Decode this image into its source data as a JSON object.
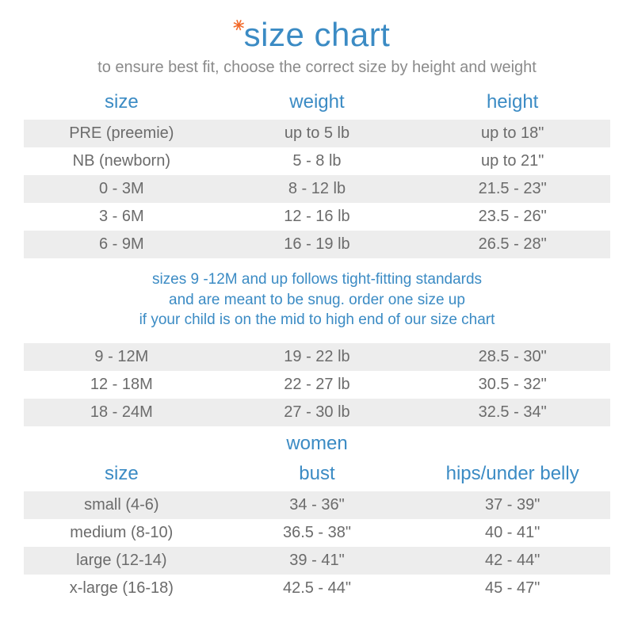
{
  "colors": {
    "blue": "#3b8bc4",
    "orange": "#f26a2a",
    "text": "#6b6b6b",
    "subtext": "#8a8a8a",
    "row_alt": "#ededed",
    "background": "#ffffff"
  },
  "title": "size chart",
  "subtitle": "to ensure best fit, choose the correct size by height and weight",
  "baby_headers": {
    "size": "size",
    "weight": "weight",
    "height": "height"
  },
  "baby_rows_a": [
    {
      "size": "PRE (preemie)",
      "weight": "up to 5 lb",
      "height": "up to 18\""
    },
    {
      "size": "NB (newborn)",
      "weight": "5 - 8 lb",
      "height": "up to 21\""
    },
    {
      "size": "0 - 3M",
      "weight": "8 - 12 lb",
      "height": "21.5 - 23\""
    },
    {
      "size": "3 - 6M",
      "weight": "12 - 16 lb",
      "height": "23.5 - 26\""
    },
    {
      "size": "6 - 9M",
      "weight": "16 - 19 lb",
      "height": "26.5 - 28\""
    }
  ],
  "note_line1": "sizes 9 -12M and up follows tight-fitting standards",
  "note_line2": "and are meant to be snug. order one size up",
  "note_line3": "if your child is on the mid to high end of our size chart",
  "baby_rows_b": [
    {
      "size": "9 - 12M",
      "weight": "19 - 22 lb",
      "height": "28.5 - 30\""
    },
    {
      "size": "12 - 18M",
      "weight": "22 - 27 lb",
      "height": "30.5 - 32\""
    },
    {
      "size": "18 - 24M",
      "weight": "27 - 30 lb",
      "height": "32.5 - 34\""
    }
  ],
  "women_label": "women",
  "women_headers": {
    "size": "size",
    "bust": "bust",
    "hips": "hips/under belly"
  },
  "women_rows": [
    {
      "size": "small (4-6)",
      "bust": "34 - 36\"",
      "hips": "37 - 39\""
    },
    {
      "size": "medium (8-10)",
      "bust": "36.5 - 38\"",
      "hips": "40 - 41\""
    },
    {
      "size": "large (12-14)",
      "bust": "39 - 41\"",
      "hips": "42 - 44\""
    },
    {
      "size": "x-large (16-18)",
      "bust": "42.5 - 44\"",
      "hips": "45 - 47\""
    }
  ]
}
